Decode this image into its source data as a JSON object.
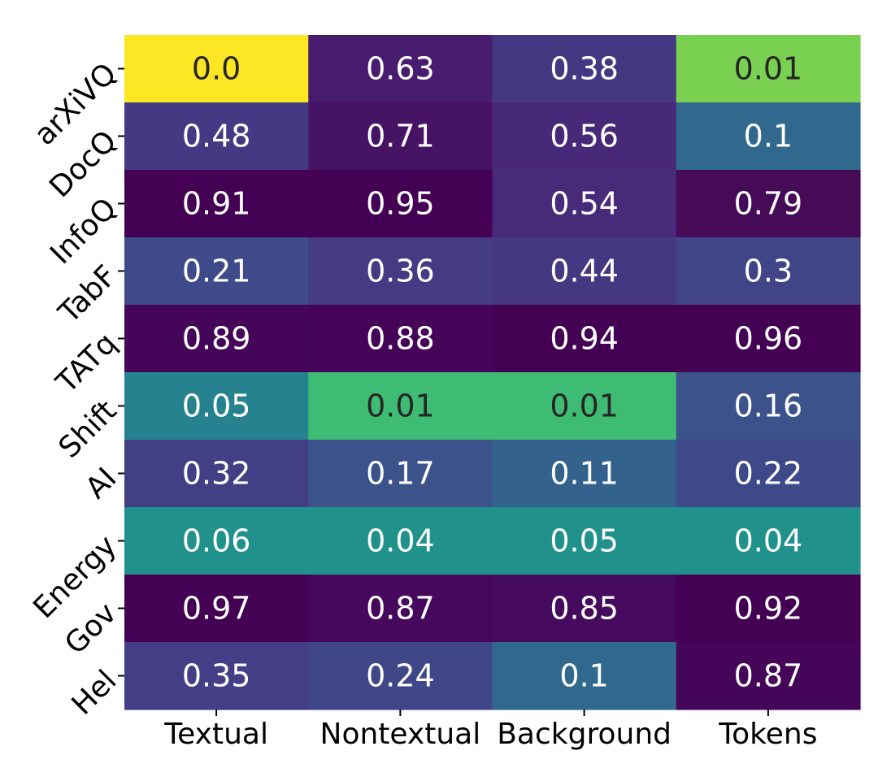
{
  "chart_data": {
    "type": "heatmap",
    "title": "",
    "xlabel": "",
    "ylabel": "",
    "colormap": "viridis",
    "color_range": [
      0.0,
      1.0
    ],
    "grid": false,
    "legend": "none",
    "columns": [
      "Textual",
      "Nontextual",
      "Background",
      "Tokens"
    ],
    "rows": [
      "arXiVQ",
      "DocQ",
      "InfoQ",
      "TabF",
      "TATq",
      "Shift",
      "AI",
      "Energy",
      "Gov",
      "Hel"
    ],
    "values": [
      [
        0.0,
        0.63,
        0.38,
        0.01
      ],
      [
        0.48,
        0.71,
        0.56,
        0.1
      ],
      [
        0.91,
        0.95,
        0.54,
        0.79
      ],
      [
        0.21,
        0.36,
        0.44,
        0.3
      ],
      [
        0.89,
        0.88,
        0.94,
        0.96
      ],
      [
        0.05,
        0.01,
        0.01,
        0.16
      ],
      [
        0.32,
        0.17,
        0.11,
        0.22
      ],
      [
        0.06,
        0.04,
        0.05,
        0.04
      ],
      [
        0.97,
        0.87,
        0.85,
        0.92
      ],
      [
        0.35,
        0.24,
        0.1,
        0.87
      ]
    ],
    "cell_labels": [
      [
        "0.0",
        "0.63",
        "0.38",
        "0.01"
      ],
      [
        "0.48",
        "0.71",
        "0.56",
        "0.1"
      ],
      [
        "0.91",
        "0.95",
        "0.54",
        "0.79"
      ],
      [
        "0.21",
        "0.36",
        "0.44",
        "0.3"
      ],
      [
        "0.89",
        "0.88",
        "0.94",
        "0.96"
      ],
      [
        "0.05",
        "0.01",
        "0.01",
        "0.16"
      ],
      [
        "0.32",
        "0.17",
        "0.11",
        "0.22"
      ],
      [
        "0.06",
        "0.04",
        "0.05",
        "0.04"
      ],
      [
        "0.97",
        "0.87",
        "0.85",
        "0.92"
      ],
      [
        "0.35",
        "0.24",
        "0.1",
        "0.87"
      ]
    ],
    "cell_colors": [
      [
        "#fde725",
        "#481c6e",
        "#453882",
        "#7ad151"
      ],
      [
        "#443a83",
        "#471365",
        "#482878",
        "#31688e"
      ],
      [
        "#440154",
        "#440154",
        "#472a7a",
        "#450b57"
      ],
      [
        "#3e4a89",
        "#443b84",
        "#453781",
        "#414487"
      ],
      [
        "#450559",
        "#450457",
        "#440154",
        "#440154"
      ],
      [
        "#26828e",
        "#3fbc73",
        "#3fbc73",
        "#3b528b"
      ],
      [
        "#423f85",
        "#3b528b",
        "#33638d",
        "#3e4989"
      ],
      [
        "#21918c",
        "#21918c",
        "#21918c",
        "#21918c"
      ],
      [
        "#440154",
        "#46085c",
        "#460b5e",
        "#440154"
      ],
      [
        "#433e85",
        "#3f4788",
        "#31688e",
        "#450559"
      ]
    ],
    "dark_text_color": "#262626",
    "light_text_color": "#ffffff"
  }
}
